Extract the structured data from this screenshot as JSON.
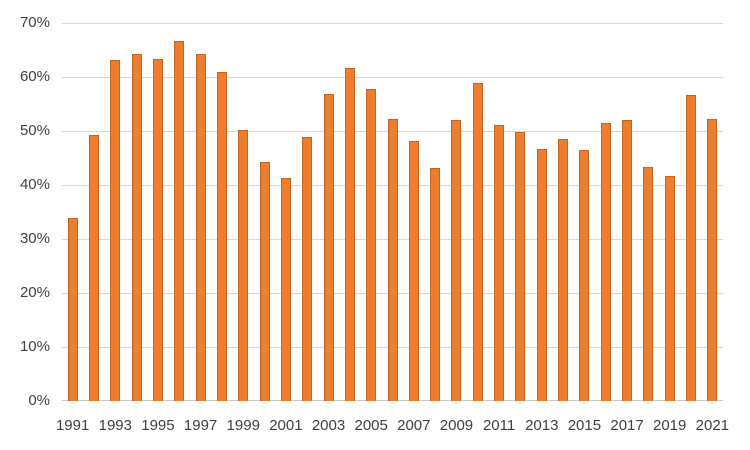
{
  "chart_data": {
    "type": "bar",
    "title": "",
    "xlabel": "",
    "ylabel": "",
    "categories": [
      "1991",
      "1992",
      "1993",
      "1994",
      "1995",
      "1996",
      "1997",
      "1998",
      "1999",
      "2000",
      "2001",
      "2002",
      "2003",
      "2004",
      "2005",
      "2006",
      "2007",
      "2008",
      "2009",
      "2010",
      "2011",
      "2012",
      "2013",
      "2014",
      "2015",
      "2016",
      "2017",
      "2018",
      "2019",
      "2020",
      "2021"
    ],
    "values": [
      33.8,
      49.3,
      63.2,
      64.2,
      63.4,
      66.6,
      64.3,
      61.0,
      50.2,
      44.2,
      41.3,
      48.8,
      56.9,
      61.6,
      57.8,
      52.3,
      48.1,
      43.2,
      52.1,
      58.9,
      51.1,
      49.8,
      46.7,
      48.6,
      46.5,
      51.4,
      52.0,
      43.3,
      41.7,
      56.7,
      52.2
    ],
    "ylim": [
      0,
      70
    ],
    "ytick_step": 10,
    "ytick_labels": [
      "0%",
      "10%",
      "20%",
      "30%",
      "40%",
      "50%",
      "60%",
      "70%"
    ],
    "xtick_labels": [
      "1991",
      "1993",
      "1995",
      "1997",
      "1999",
      "2001",
      "2003",
      "2005",
      "2007",
      "2009",
      "2011",
      "2013",
      "2015",
      "2017",
      "2019",
      "2021"
    ],
    "grid": true,
    "legend": false,
    "colors": {
      "bar_fill": "#ED7D31",
      "bar_border": "#c2651f",
      "gridline": "#d9d9d9",
      "axis_text": "#404040",
      "background": "#ffffff"
    }
  }
}
